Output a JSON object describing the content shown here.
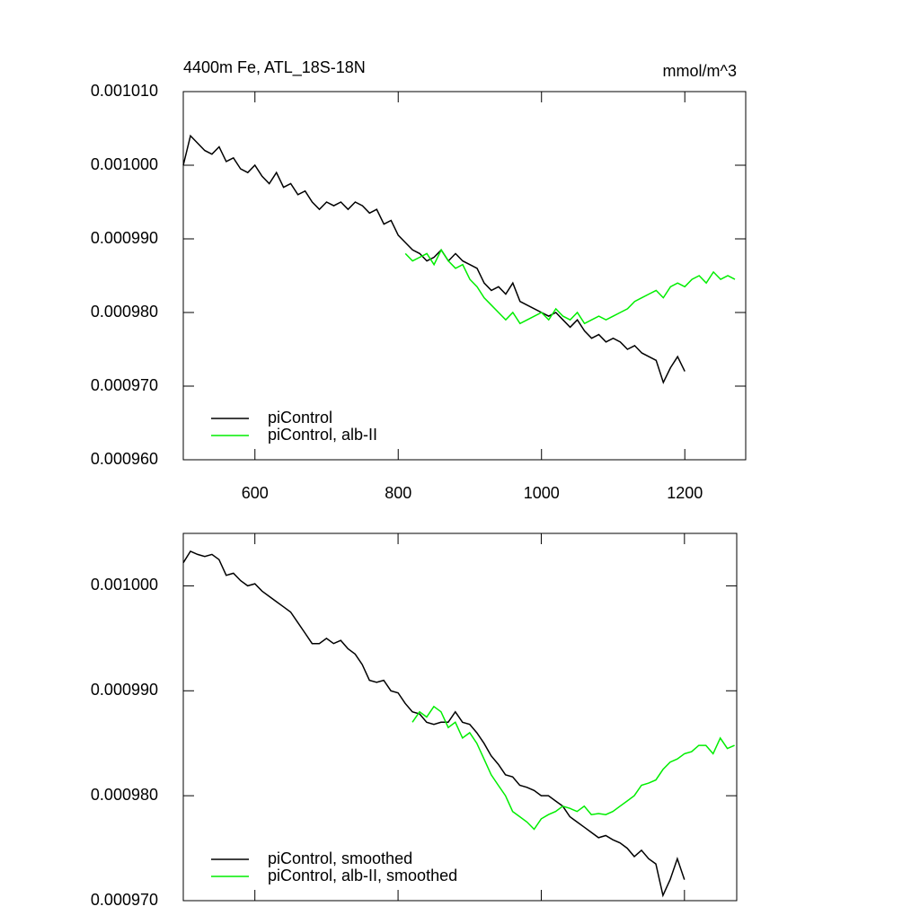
{
  "chart_data": [
    {
      "type": "line",
      "title": "4400m Fe, ATL_18S-18N",
      "units_label": "mmol/m^3",
      "x": [
        500,
        510,
        520,
        530,
        540,
        550,
        560,
        570,
        580,
        590,
        600,
        610,
        620,
        630,
        640,
        650,
        660,
        670,
        680,
        690,
        700,
        710,
        720,
        730,
        740,
        750,
        760,
        770,
        780,
        790,
        800,
        810,
        820,
        830,
        840,
        850,
        860,
        870,
        880,
        890,
        900,
        910,
        920,
        930,
        940,
        950,
        960,
        970,
        980,
        990,
        1000,
        1010,
        1020,
        1030,
        1040,
        1050,
        1060,
        1070,
        1080,
        1090,
        1100,
        1110,
        1120,
        1130,
        1140,
        1150,
        1160,
        1170,
        1180,
        1190,
        1200,
        1210,
        1220,
        1230,
        1240,
        1250,
        1260,
        1270
      ],
      "xlim": [
        500,
        1285
      ],
      "xticks": [
        600,
        800,
        1000,
        1200
      ],
      "ylim": [
        0.00096,
        0.00101
      ],
      "yticks": [
        {
          "value": 0.00096,
          "label": "0.000960"
        },
        {
          "value": 0.00097,
          "label": "0.000970"
        },
        {
          "value": 0.00098,
          "label": "0.000980"
        },
        {
          "value": 0.00099,
          "label": "0.000990"
        },
        {
          "value": 0.001,
          "label": "0.001000"
        },
        {
          "value": 0.00101,
          "label": "0.001010"
        }
      ],
      "show_xtick_labels": true,
      "legend": "lower left",
      "series": [
        {
          "name": "piControl",
          "color": "#000000",
          "values": [
            0.001,
            0.001004,
            0.001003,
            0.001002,
            0.0010015,
            0.0010025,
            0.0010005,
            0.001001,
            0.0009995,
            0.000999,
            0.001,
            0.0009985,
            0.0009975,
            0.000999,
            0.000997,
            0.0009975,
            0.000996,
            0.0009965,
            0.000995,
            0.000994,
            0.000995,
            0.0009945,
            0.000995,
            0.000994,
            0.000995,
            0.0009945,
            0.0009935,
            0.000994,
            0.000992,
            0.0009925,
            0.0009905,
            0.0009895,
            0.0009885,
            0.000988,
            0.000987,
            0.0009875,
            0.0009885,
            0.000987,
            0.000988,
            0.000987,
            0.0009865,
            0.000986,
            0.000984,
            0.000983,
            0.0009835,
            0.0009825,
            0.000984,
            0.0009815,
            0.000981,
            0.0009805,
            0.00098,
            0.0009795,
            0.00098,
            0.000979,
            0.000978,
            0.000979,
            0.0009775,
            0.0009765,
            0.000977,
            0.000976,
            0.0009765,
            0.000976,
            0.000975,
            0.0009755,
            0.0009745,
            0.000974,
            0.0009735,
            0.0009705,
            0.0009725,
            0.000974,
            0.000972,
            null,
            null,
            null,
            null,
            null,
            null,
            null
          ]
        },
        {
          "name": "piControl, alb-II",
          "color": "#00ee00",
          "values": [
            null,
            null,
            null,
            null,
            null,
            null,
            null,
            null,
            null,
            null,
            null,
            null,
            null,
            null,
            null,
            null,
            null,
            null,
            null,
            null,
            null,
            null,
            null,
            null,
            null,
            null,
            null,
            null,
            null,
            null,
            null,
            0.000988,
            0.000987,
            0.0009875,
            0.000988,
            0.0009865,
            0.0009885,
            0.000987,
            0.000986,
            0.0009865,
            0.0009845,
            0.0009835,
            0.000982,
            0.000981,
            0.00098,
            0.000979,
            0.00098,
            0.0009785,
            0.000979,
            0.0009795,
            0.00098,
            0.000979,
            0.0009805,
            0.0009795,
            0.000979,
            0.00098,
            0.0009785,
            0.000979,
            0.0009795,
            0.000979,
            0.0009795,
            0.00098,
            0.0009805,
            0.0009815,
            0.000982,
            0.0009825,
            0.000983,
            0.000982,
            0.0009835,
            0.000984,
            0.0009835,
            0.0009845,
            0.000985,
            0.000984,
            0.0009855,
            0.0009845,
            0.000985,
            0.0009845
          ]
        }
      ]
    },
    {
      "type": "line",
      "x": [
        500,
        510,
        520,
        530,
        540,
        550,
        560,
        570,
        580,
        590,
        600,
        610,
        620,
        630,
        640,
        650,
        660,
        670,
        680,
        690,
        700,
        710,
        720,
        730,
        740,
        750,
        760,
        770,
        780,
        790,
        800,
        810,
        820,
        830,
        840,
        850,
        860,
        870,
        880,
        890,
        900,
        910,
        920,
        930,
        940,
        950,
        960,
        970,
        980,
        990,
        1000,
        1010,
        1020,
        1030,
        1040,
        1050,
        1060,
        1070,
        1080,
        1090,
        1100,
        1110,
        1120,
        1130,
        1140,
        1150,
        1160,
        1170,
        1180,
        1190,
        1200,
        1210,
        1220,
        1230,
        1240,
        1250,
        1260,
        1270
      ],
      "xlim": [
        500,
        1273
      ],
      "xticks": [
        600,
        800,
        1000,
        1200
      ],
      "ylim": [
        0.00097,
        0.001005
      ],
      "yticks": [
        {
          "value": 0.00097,
          "label": "0.000970"
        },
        {
          "value": 0.00098,
          "label": "0.000980"
        },
        {
          "value": 0.00099,
          "label": "0.000990"
        },
        {
          "value": 0.001,
          "label": "0.001000"
        }
      ],
      "show_xtick_labels": false,
      "legend": "lower left",
      "series": [
        {
          "name": "piControl, smoothed",
          "color": "#000000",
          "values": [
            0.0010022,
            0.0010033,
            0.001003,
            0.0010028,
            0.001003,
            0.0010025,
            0.001001,
            0.0010012,
            0.0010005,
            0.001,
            0.0010002,
            0.0009995,
            0.000999,
            0.0009985,
            0.000998,
            0.0009975,
            0.0009965,
            0.0009955,
            0.0009945,
            0.0009945,
            0.000995,
            0.0009945,
            0.0009948,
            0.000994,
            0.0009935,
            0.0009925,
            0.000991,
            0.0009908,
            0.000991,
            0.00099,
            0.0009898,
            0.0009888,
            0.000988,
            0.0009878,
            0.000987,
            0.0009868,
            0.000987,
            0.000987,
            0.000988,
            0.000987,
            0.0009868,
            0.000986,
            0.000985,
            0.0009838,
            0.000983,
            0.000982,
            0.0009818,
            0.000981,
            0.0009808,
            0.0009805,
            0.00098,
            0.00098,
            0.0009795,
            0.000979,
            0.000978,
            0.0009775,
            0.000977,
            0.0009765,
            0.000976,
            0.0009762,
            0.0009758,
            0.0009755,
            0.000975,
            0.0009742,
            0.0009748,
            0.000974,
            0.0009735,
            0.0009705,
            0.000972,
            0.000974,
            0.000972,
            null,
            null,
            null,
            null,
            null,
            null,
            null
          ]
        },
        {
          "name": "piControl, alb-II, smoothed",
          "color": "#00ee00",
          "values": [
            null,
            null,
            null,
            null,
            null,
            null,
            null,
            null,
            null,
            null,
            null,
            null,
            null,
            null,
            null,
            null,
            null,
            null,
            null,
            null,
            null,
            null,
            null,
            null,
            null,
            null,
            null,
            null,
            null,
            null,
            null,
            null,
            0.000987,
            0.000988,
            0.0009875,
            0.0009885,
            0.000988,
            0.0009865,
            0.000987,
            0.0009855,
            0.000986,
            0.000985,
            0.0009835,
            0.000982,
            0.000981,
            0.00098,
            0.0009785,
            0.000978,
            0.0009775,
            0.0009768,
            0.0009778,
            0.0009782,
            0.0009785,
            0.000979,
            0.0009788,
            0.0009785,
            0.000979,
            0.0009782,
            0.0009783,
            0.0009782,
            0.0009785,
            0.000979,
            0.0009795,
            0.00098,
            0.000981,
            0.0009812,
            0.0009815,
            0.0009825,
            0.0009832,
            0.0009835,
            0.000984,
            0.0009842,
            0.0009848,
            0.0009848,
            0.000984,
            0.0009855,
            0.0009845,
            0.0009848
          ]
        }
      ]
    }
  ]
}
